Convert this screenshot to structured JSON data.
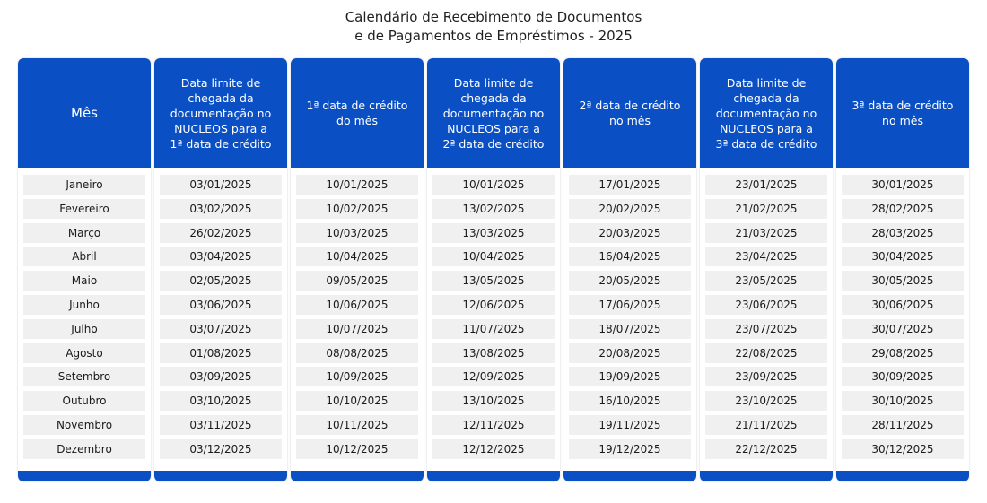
{
  "title": {
    "line1": "Calendário de Recebimento de Documentos",
    "line2": "e de Pagamentos de Empréstimos - 2025"
  },
  "columns": [
    {
      "header": "Mês",
      "values": [
        "Janeiro",
        "Fevereiro",
        "Março",
        "Abril",
        "Maio",
        "Junho",
        "Julho",
        "Agosto",
        "Setembro",
        "Outubro",
        "Novembro",
        "Dezembro"
      ]
    },
    {
      "header": "Data limite de\nchegada da\ndocumentação no\nNUCLEOS para a\n1ª data de crédito",
      "values": [
        "03/01/2025",
        "03/02/2025",
        "26/02/2025",
        "03/04/2025",
        "02/05/2025",
        "03/06/2025",
        "03/07/2025",
        "01/08/2025",
        "03/09/2025",
        "03/10/2025",
        "03/11/2025",
        "03/12/2025"
      ]
    },
    {
      "header": "1ª data de crédito\ndo mês",
      "values": [
        "10/01/2025",
        "10/02/2025",
        "10/03/2025",
        "10/04/2025",
        "09/05/2025",
        "10/06/2025",
        "10/07/2025",
        "08/08/2025",
        "10/09/2025",
        "10/10/2025",
        "10/11/2025",
        "10/12/2025"
      ]
    },
    {
      "header": "Data limite de\nchegada da\ndocumentação no\nNUCLEOS  para a\n2ª data de crédito",
      "values": [
        "10/01/2025",
        "13/02/2025",
        "13/03/2025",
        "10/04/2025",
        "13/05/2025",
        "12/06/2025",
        "11/07/2025",
        "13/08/2025",
        "12/09/2025",
        "13/10/2025",
        "12/11/2025",
        "12/12/2025"
      ]
    },
    {
      "header": "2ª data de crédito\nno mês",
      "values": [
        "17/01/2025",
        "20/02/2025",
        "20/03/2025",
        "16/04/2025",
        "20/05/2025",
        "17/06/2025",
        "18/07/2025",
        "20/08/2025",
        "19/09/2025",
        "16/10/2025",
        "19/11/2025",
        "19/12/2025"
      ]
    },
    {
      "header": "Data limite de\nchegada da\ndocumentação no\nNUCLEOS para a\n3ª data de crédito",
      "values": [
        "23/01/2025",
        "21/02/2025",
        "21/03/2025",
        "23/04/2025",
        "23/05/2025",
        "23/06/2025",
        "23/07/2025",
        "22/08/2025",
        "23/09/2025",
        "23/10/2025",
        "21/11/2025",
        "22/12/2025"
      ]
    },
    {
      "header": "3ª data de crédito\nno mês",
      "values": [
        "30/01/2025",
        "28/02/2025",
        "28/03/2025",
        "30/04/2025",
        "30/05/2025",
        "30/06/2025",
        "30/07/2025",
        "29/08/2025",
        "30/09/2025",
        "30/10/2025",
        "28/11/2025",
        "30/12/2025"
      ]
    }
  ],
  "colors": {
    "header_blue": "#0a4fc4",
    "cell_gray": "#f0f0f0"
  }
}
